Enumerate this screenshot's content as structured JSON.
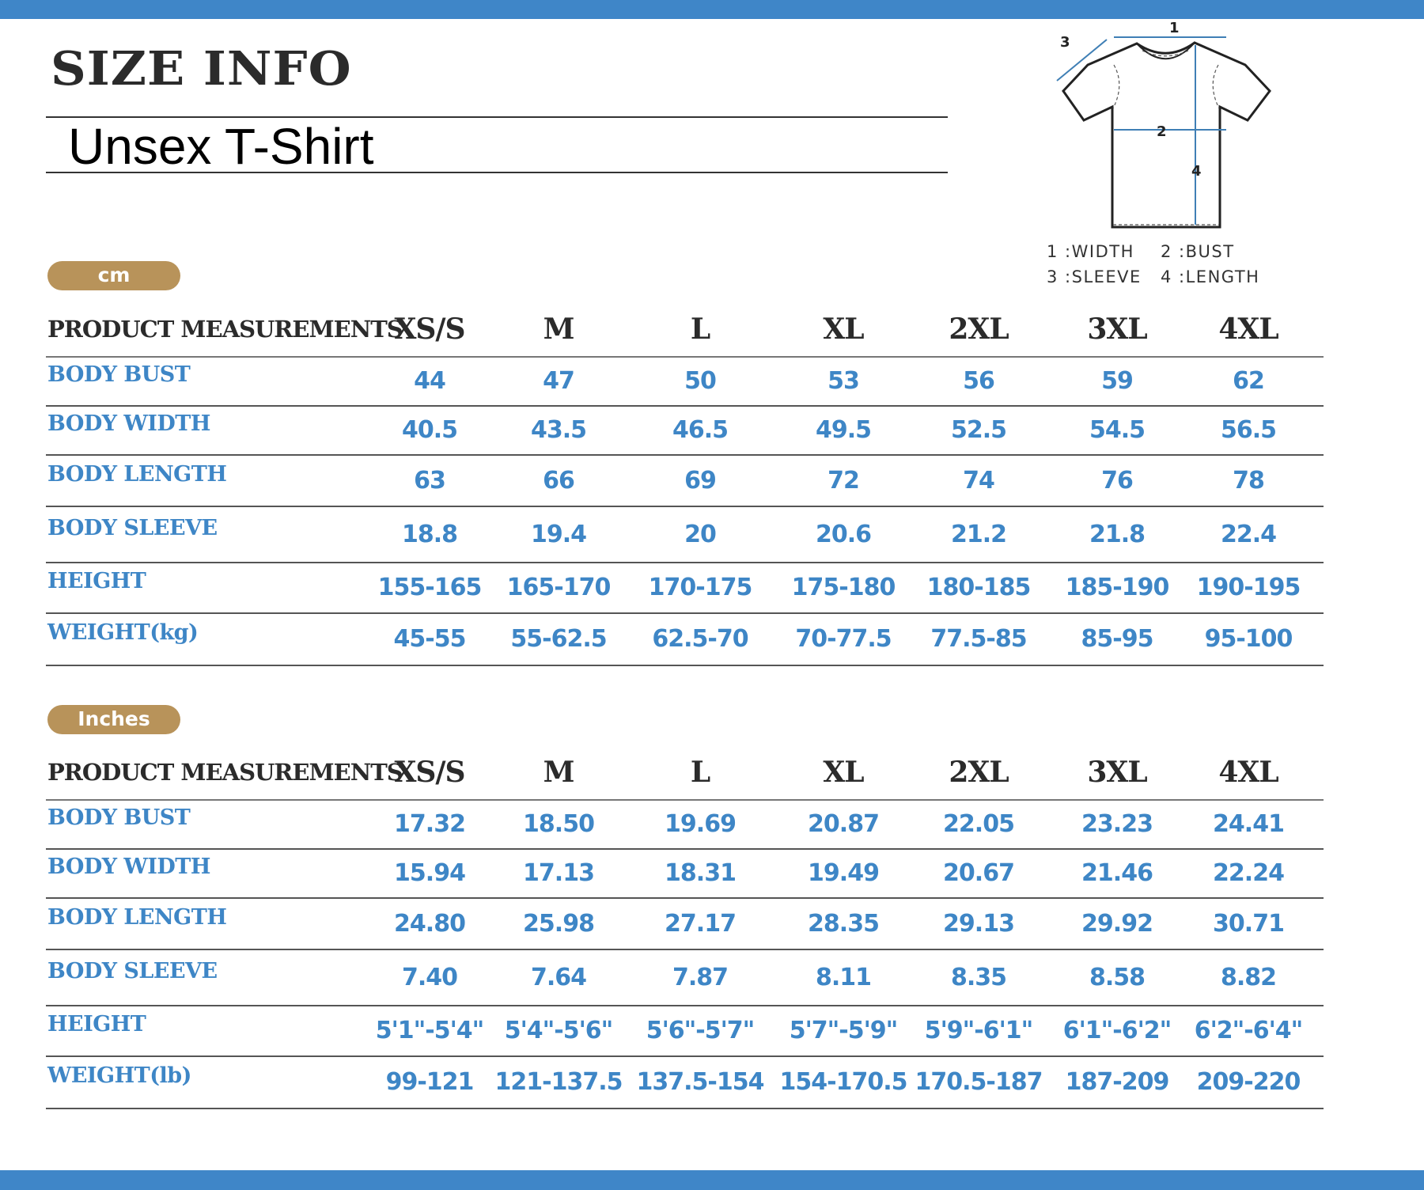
{
  "header": {
    "title": "SIZE INFO",
    "subtitle": "Unsex T-Shirt"
  },
  "diagram": {
    "markers": [
      "1",
      "2",
      "3",
      "4"
    ],
    "legend": [
      "1 :WIDTH",
      "2 :BUST",
      "3 :SLEEVE",
      "4 :LENGTH"
    ]
  },
  "colors": {
    "accent": "#3f86c8",
    "pill": "#b8935a",
    "value_text": "#3e86c6"
  },
  "tables": [
    {
      "unit": "cm",
      "header": [
        "PRODUCT MEASUREMENTS",
        "XS/S",
        "M",
        "L",
        "XL",
        "2XL",
        "3XL",
        "4XL"
      ],
      "rows": [
        {
          "label": "BODY BUST",
          "values": [
            "44",
            "47",
            "50",
            "53",
            "56",
            "59",
            "62"
          ]
        },
        {
          "label": "BODY WIDTH",
          "values": [
            "40.5",
            "43.5",
            "46.5",
            "49.5",
            "52.5",
            "54.5",
            "56.5"
          ]
        },
        {
          "label": "BODY LENGTH",
          "values": [
            "63",
            "66",
            "69",
            "72",
            "74",
            "76",
            "78"
          ]
        },
        {
          "label": "BODY SLEEVE",
          "values": [
            "18.8",
            "19.4",
            "20",
            "20.6",
            "21.2",
            "21.8",
            "22.4"
          ]
        },
        {
          "label": "HEIGHT",
          "values": [
            "155-165",
            "165-170",
            "170-175",
            "175-180",
            "180-185",
            "185-190",
            "190-195"
          ]
        },
        {
          "label": "WEIGHT(kg)",
          "values": [
            "45-55",
            "55-62.5",
            "62.5-70",
            "70-77.5",
            "77.5-85",
            "85-95",
            "95-100"
          ]
        }
      ]
    },
    {
      "unit": "Inches",
      "header": [
        "PRODUCT MEASUREMENTS",
        "XS/S",
        "M",
        "L",
        "XL",
        "2XL",
        "3XL",
        "4XL"
      ],
      "rows": [
        {
          "label": "BODY BUST",
          "values": [
            "17.32",
            "18.50",
            "19.69",
            "20.87",
            "22.05",
            "23.23",
            "24.41"
          ]
        },
        {
          "label": "BODY WIDTH",
          "values": [
            "15.94",
            "17.13",
            "18.31",
            "19.49",
            "20.67",
            "21.46",
            "22.24"
          ]
        },
        {
          "label": "BODY LENGTH",
          "values": [
            "24.80",
            "25.98",
            "27.17",
            "28.35",
            "29.13",
            "29.92",
            "30.71"
          ]
        },
        {
          "label": "BODY SLEEVE",
          "values": [
            "7.40",
            "7.64",
            "7.87",
            "8.11",
            "8.35",
            "8.58",
            "8.82"
          ]
        },
        {
          "label": "HEIGHT",
          "values": [
            "5'1\"-5'4\"",
            "5'4\"-5'6\"",
            "5'6\"-5'7\"",
            "5'7\"-5'9\"",
            "5'9\"-6'1\"",
            "6'1\"-6'2\"",
            "6'2\"-6'4\""
          ]
        },
        {
          "label": "WEIGHT(lb)",
          "values": [
            "99-121",
            "121-137.5",
            "137.5-154",
            "154-170.5",
            "170.5-187",
            "187-209",
            "209-220"
          ]
        }
      ]
    }
  ]
}
